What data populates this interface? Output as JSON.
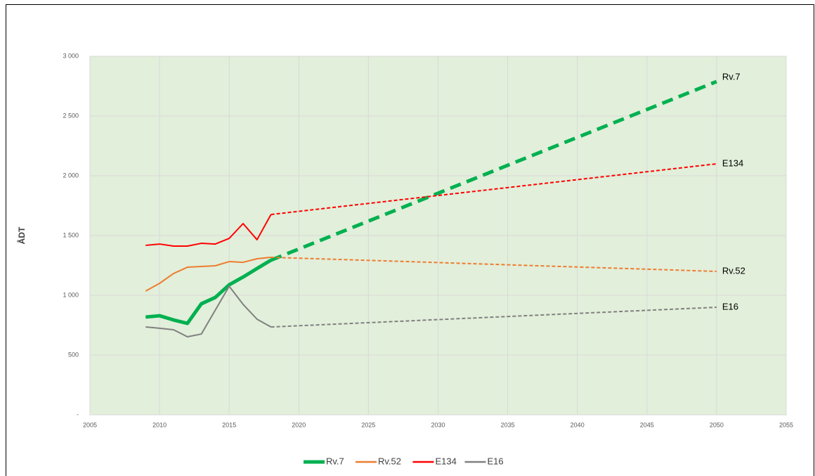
{
  "chart_data": {
    "type": "line",
    "y_label": "ÅDT",
    "x": [
      2009,
      2010,
      2011,
      2012,
      2013,
      2014,
      2015,
      2016,
      2017,
      2018,
      2050
    ],
    "xlim": [
      2005,
      2055
    ],
    "xticks": [
      2005,
      2010,
      2015,
      2020,
      2025,
      2030,
      2035,
      2040,
      2045,
      2050,
      2055
    ],
    "ylim": [
      0,
      3000
    ],
    "yticks": [
      {
        "value": 0,
        "label": "-"
      },
      {
        "value": 500,
        "label": "500"
      },
      {
        "value": 1000,
        "label": "1 000"
      },
      {
        "value": 1500,
        "label": "1 500"
      },
      {
        "value": 2000,
        "label": "2 000"
      },
      {
        "value": 2500,
        "label": "2 500"
      },
      {
        "value": 3000,
        "label": "3 000"
      }
    ],
    "grid": true,
    "legend": "bottom",
    "series": [
      {
        "name": "Rv.7",
        "color": "#00b050",
        "width": 5,
        "values": [
          818,
          829,
          794,
          765,
          929,
          982,
          1088,
          1153,
          1224,
          1294,
          null
        ],
        "projection": [
          null,
          null,
          null,
          null,
          null,
          null,
          null,
          null,
          null,
          1294,
          2788
        ]
      },
      {
        "name": "Rv.52",
        "color": "#ed7d31",
        "width": 2,
        "values": [
          1035,
          1100,
          1182,
          1235,
          1241,
          1247,
          1282,
          1276,
          1306,
          1318,
          null
        ],
        "projection": [
          null,
          null,
          null,
          null,
          null,
          null,
          null,
          null,
          null,
          1318,
          1200
        ]
      },
      {
        "name": "E134",
        "color": "#ff0000",
        "width": 2,
        "values": [
          1418,
          1429,
          1412,
          1412,
          1435,
          1429,
          1476,
          1600,
          1465,
          1676,
          null
        ],
        "projection": [
          null,
          null,
          null,
          null,
          null,
          null,
          null,
          null,
          null,
          1676,
          2100
        ]
      },
      {
        "name": "E16",
        "color": "#808080",
        "width": 2,
        "values": [
          735,
          724,
          712,
          653,
          676,
          876,
          1076,
          924,
          800,
          735,
          null
        ],
        "projection": [
          null,
          null,
          null,
          null,
          null,
          null,
          null,
          null,
          null,
          735,
          900
        ]
      }
    ]
  }
}
